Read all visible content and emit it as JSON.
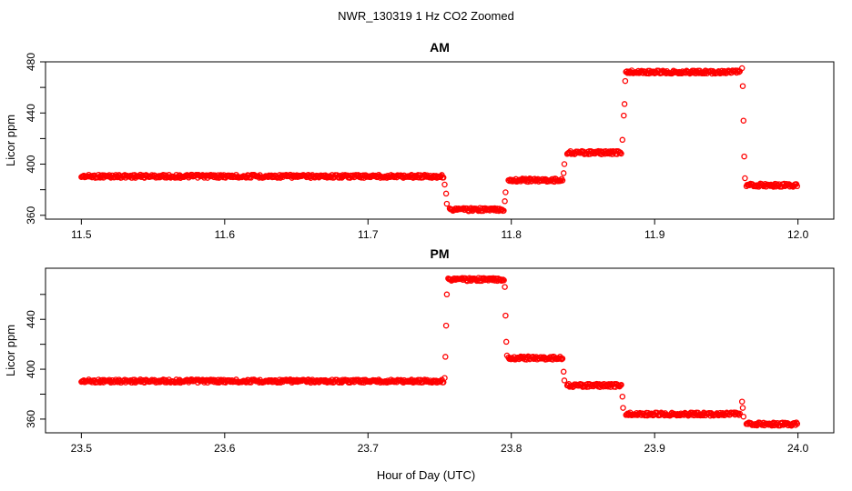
{
  "page": {
    "title": "NWR_130319  1 Hz CO2 Zoomed",
    "shared_xlabel": "Hour of Day (UTC)"
  },
  "chart_data": [
    {
      "type": "scatter",
      "title": "AM",
      "xlabel": "",
      "ylabel": "Licor ppm",
      "xlim": [
        11.475,
        12.025
      ],
      "ylim": [
        357,
        480
      ],
      "x_ticks": [
        "11.5",
        "11.6",
        "11.7",
        "11.8",
        "11.9",
        "12.0"
      ],
      "y_ticks": [
        "360",
        "400",
        "440",
        "480"
      ],
      "marker_color": "#ff0000",
      "segments": [
        {
          "x_start": 11.5,
          "x_end": 11.753,
          "y": 390.5
        },
        {
          "x_start": 11.757,
          "x_end": 11.795,
          "y": 364.5
        },
        {
          "x_start": 11.798,
          "x_end": 11.836,
          "y": 387.5
        },
        {
          "x_start": 11.839,
          "x_end": 11.877,
          "y": 409
        },
        {
          "x_start": 11.88,
          "x_end": 11.96,
          "y": 472
        },
        {
          "x_start": 11.964,
          "x_end": 12.0,
          "y": 383.5
        }
      ],
      "transitions": [
        {
          "x": 11.7535,
          "y": 384
        },
        {
          "x": 11.7545,
          "y": 377
        },
        {
          "x": 11.755,
          "y": 369
        },
        {
          "x": 11.7955,
          "y": 371
        },
        {
          "x": 11.796,
          "y": 378
        },
        {
          "x": 11.8365,
          "y": 393
        },
        {
          "x": 11.837,
          "y": 400
        },
        {
          "x": 11.8775,
          "y": 419
        },
        {
          "x": 11.8785,
          "y": 438
        },
        {
          "x": 11.879,
          "y": 447
        },
        {
          "x": 11.8795,
          "y": 465
        },
        {
          "x": 11.961,
          "y": 475
        },
        {
          "x": 11.9615,
          "y": 461
        },
        {
          "x": 11.962,
          "y": 434
        },
        {
          "x": 11.9625,
          "y": 406
        },
        {
          "x": 11.963,
          "y": 389
        }
      ]
    },
    {
      "type": "scatter",
      "title": "PM",
      "xlabel": "Hour of Day (UTC)",
      "ylabel": "Licor ppm",
      "xlim": [
        23.475,
        24.025
      ],
      "ylim": [
        349,
        481
      ],
      "x_ticks": [
        "23.5",
        "23.6",
        "23.7",
        "23.8",
        "23.9",
        "24.0"
      ],
      "y_ticks": [
        "360",
        "400",
        "440"
      ],
      "marker_color": "#ff0000",
      "segments": [
        {
          "x_start": 23.5,
          "x_end": 23.753,
          "y": 390.5
        },
        {
          "x_start": 23.756,
          "x_end": 23.795,
          "y": 472
        },
        {
          "x_start": 23.798,
          "x_end": 23.836,
          "y": 409
        },
        {
          "x_start": 23.839,
          "x_end": 23.877,
          "y": 387
        },
        {
          "x_start": 23.88,
          "x_end": 23.96,
          "y": 364
        },
        {
          "x_start": 23.964,
          "x_end": 24.0,
          "y": 356
        }
      ],
      "transitions": [
        {
          "x": 23.7535,
          "y": 393
        },
        {
          "x": 23.754,
          "y": 410
        },
        {
          "x": 23.7545,
          "y": 435
        },
        {
          "x": 23.755,
          "y": 460
        },
        {
          "x": 23.7955,
          "y": 466
        },
        {
          "x": 23.796,
          "y": 443
        },
        {
          "x": 23.7965,
          "y": 422
        },
        {
          "x": 23.797,
          "y": 411
        },
        {
          "x": 23.8365,
          "y": 398
        },
        {
          "x": 23.837,
          "y": 391
        },
        {
          "x": 23.8775,
          "y": 378
        },
        {
          "x": 23.878,
          "y": 369
        },
        {
          "x": 23.961,
          "y": 374
        },
        {
          "x": 23.9615,
          "y": 369
        },
        {
          "x": 23.962,
          "y": 362
        }
      ]
    }
  ]
}
